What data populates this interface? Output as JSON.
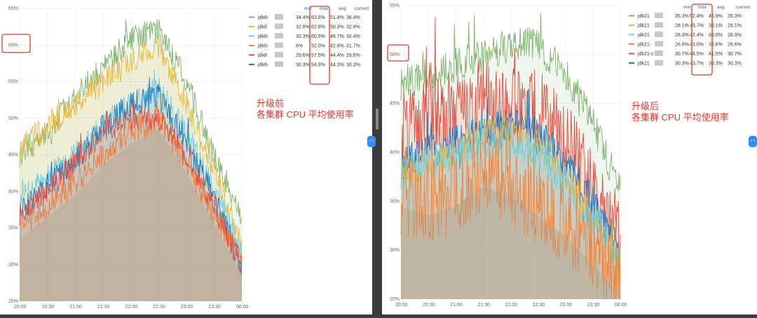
{
  "panels": [
    {
      "id": "before",
      "annotation": [
        "升级前",
        "各集群 CPU 平均使用率"
      ],
      "legend_headers": [
        "min",
        "max",
        "avg",
        "current"
      ],
      "legend": [
        {
          "name": "jdk8-",
          "color": "#7eb26d",
          "min": "34.4%",
          "max": "63.6%",
          "avg": "51.4%",
          "current": "36.4%"
        },
        {
          "name": "jdk8",
          "color": "#eab839",
          "min": "32.8%",
          "max": "62.8%",
          "avg": "50.9%",
          "current": "32.8%"
        },
        {
          "name": "jdk8-",
          "color": "#6ed0e0",
          "min": "32.3%",
          "max": "60.5%",
          "avg": "46.7%",
          "current": "32.4%"
        },
        {
          "name": "jdk8-",
          "color": "#ef843c",
          "min": "",
          "max": "52.0%",
          "avg": "42.8%",
          "current": "31.7%",
          "min_partial": "6%"
        },
        {
          "name": "jdk8",
          "color": "#e24d42",
          "min": "29.6%",
          "max": "57.5%",
          "avg": "44.4%",
          "current": "29.6%"
        },
        {
          "name": "jdk8-",
          "color": "#1f78c1",
          "min": "30.3%",
          "max": "54.8%",
          "avg": "44.3%",
          "current": "30.3%"
        }
      ],
      "y_ticks": [
        "65%",
        "60%",
        "55%",
        "50%",
        "45%",
        "40%",
        "35%",
        "30%",
        "25%"
      ],
      "x_ticks": [
        "20:00",
        "20:30",
        "21:00",
        "21:30",
        "22:00",
        "22:30",
        "23:00",
        "23:30",
        "00:00"
      ]
    },
    {
      "id": "after",
      "annotation": [
        "升级后",
        "各集群 CPU 平均使用率"
      ],
      "legend_headers": [
        "min",
        "max",
        "avg",
        "current"
      ],
      "legend": [
        {
          "name": "jdk21",
          "color": "#7eb26d",
          "min": "35.3%",
          "max": "52.4%",
          "avg": "46.9%",
          "current": "35.3%"
        },
        {
          "name": "jdk21",
          "color": "#eab839",
          "min": "28.1%",
          "max": "45.7%",
          "avg": "39.1%",
          "current": "28.1%"
        },
        {
          "name": "jdk21",
          "color": "#6ed0e0",
          "min": "28.3%",
          "max": "42.4%",
          "avg": "38.0%",
          "current": "28.3%"
        },
        {
          "name": "jdk21-",
          "color": "#ef843c",
          "min": "26.6%",
          "max": "43.0%",
          "avg": "35.6%",
          "current": "26.6%"
        },
        {
          "name": "jdk21-c",
          "color": "#e24d42",
          "min": "30.7%",
          "max": "48.5%",
          "avg": "41.5%",
          "current": "30.7%"
        },
        {
          "name": "jdk21",
          "color": "#1f78c1",
          "min": "30.3%",
          "max": "43.7%",
          "avg": "39.3%",
          "current": "30.3%"
        }
      ],
      "y_ticks": [
        "55%",
        "50%",
        "45%",
        "40%",
        "35%",
        "30%",
        "25%"
      ],
      "x_ticks": [
        "20:00",
        "20:30",
        "21:00",
        "21:30",
        "22:00",
        "22:30",
        "23:00",
        "23:30",
        "00:00"
      ]
    }
  ],
  "chart_data": [
    {
      "type": "area",
      "title": "",
      "x": [
        "20:00",
        "20:30",
        "21:00",
        "21:30",
        "22:00",
        "22:30",
        "23:00",
        "23:30",
        "00:00"
      ],
      "ylim": [
        25,
        65
      ],
      "y_unit": "%",
      "grid": true,
      "legend_placement": "top-right",
      "series": [
        {
          "name": "jdk8-",
          "color": "#7eb26d",
          "values": [
            45,
            48,
            53,
            57,
            61,
            62,
            55,
            45,
            36
          ]
        },
        {
          "name": "jdk8",
          "color": "#eab839",
          "values": [
            46,
            49,
            52,
            55,
            58,
            60,
            52,
            43,
            33
          ]
        },
        {
          "name": "jdk8-",
          "color": "#6ed0e0",
          "values": [
            39,
            42,
            45,
            49,
            52,
            54,
            48,
            40,
            32
          ]
        },
        {
          "name": "jdk8-",
          "color": "#ef843c",
          "values": [
            35,
            38,
            41,
            45,
            48,
            50,
            44,
            37,
            31
          ]
        },
        {
          "name": "jdk8",
          "color": "#e24d42",
          "values": [
            37,
            40,
            44,
            48,
            50,
            50,
            45,
            38,
            30
          ]
        },
        {
          "name": "jdk8-",
          "color": "#1f78c1",
          "values": [
            37,
            41,
            44,
            49,
            52,
            53,
            47,
            39,
            30
          ]
        }
      ]
    },
    {
      "type": "area",
      "title": "",
      "x": [
        "20:00",
        "20:30",
        "21:00",
        "21:30",
        "22:00",
        "22:30",
        "23:00",
        "23:30",
        "00:00"
      ],
      "ylim": [
        25,
        55
      ],
      "y_unit": "%",
      "grid": true,
      "legend_placement": "top-right",
      "series": [
        {
          "name": "jdk21",
          "color": "#7eb26d",
          "values": [
            47,
            48,
            49,
            50,
            51,
            51,
            48,
            43,
            36
          ]
        },
        {
          "name": "jdk21",
          "color": "#eab839",
          "values": [
            38,
            39,
            40,
            42,
            42,
            41,
            38,
            33,
            29
          ]
        },
        {
          "name": "jdk21",
          "color": "#6ed0e0",
          "values": [
            38,
            39,
            40,
            41,
            41,
            40,
            37,
            33,
            29
          ]
        },
        {
          "name": "jdk21-",
          "color": "#ef843c",
          "values": [
            36,
            35,
            36,
            38,
            37,
            35,
            33,
            30,
            27
          ]
        },
        {
          "name": "jdk21-c",
          "color": "#e24d42",
          "values": [
            42,
            43,
            44,
            45,
            45,
            44,
            41,
            36,
            31
          ]
        },
        {
          "name": "jdk21",
          "color": "#1f78c1",
          "values": [
            39,
            40,
            41,
            42,
            43,
            42,
            39,
            35,
            30
          ]
        }
      ]
    }
  ]
}
